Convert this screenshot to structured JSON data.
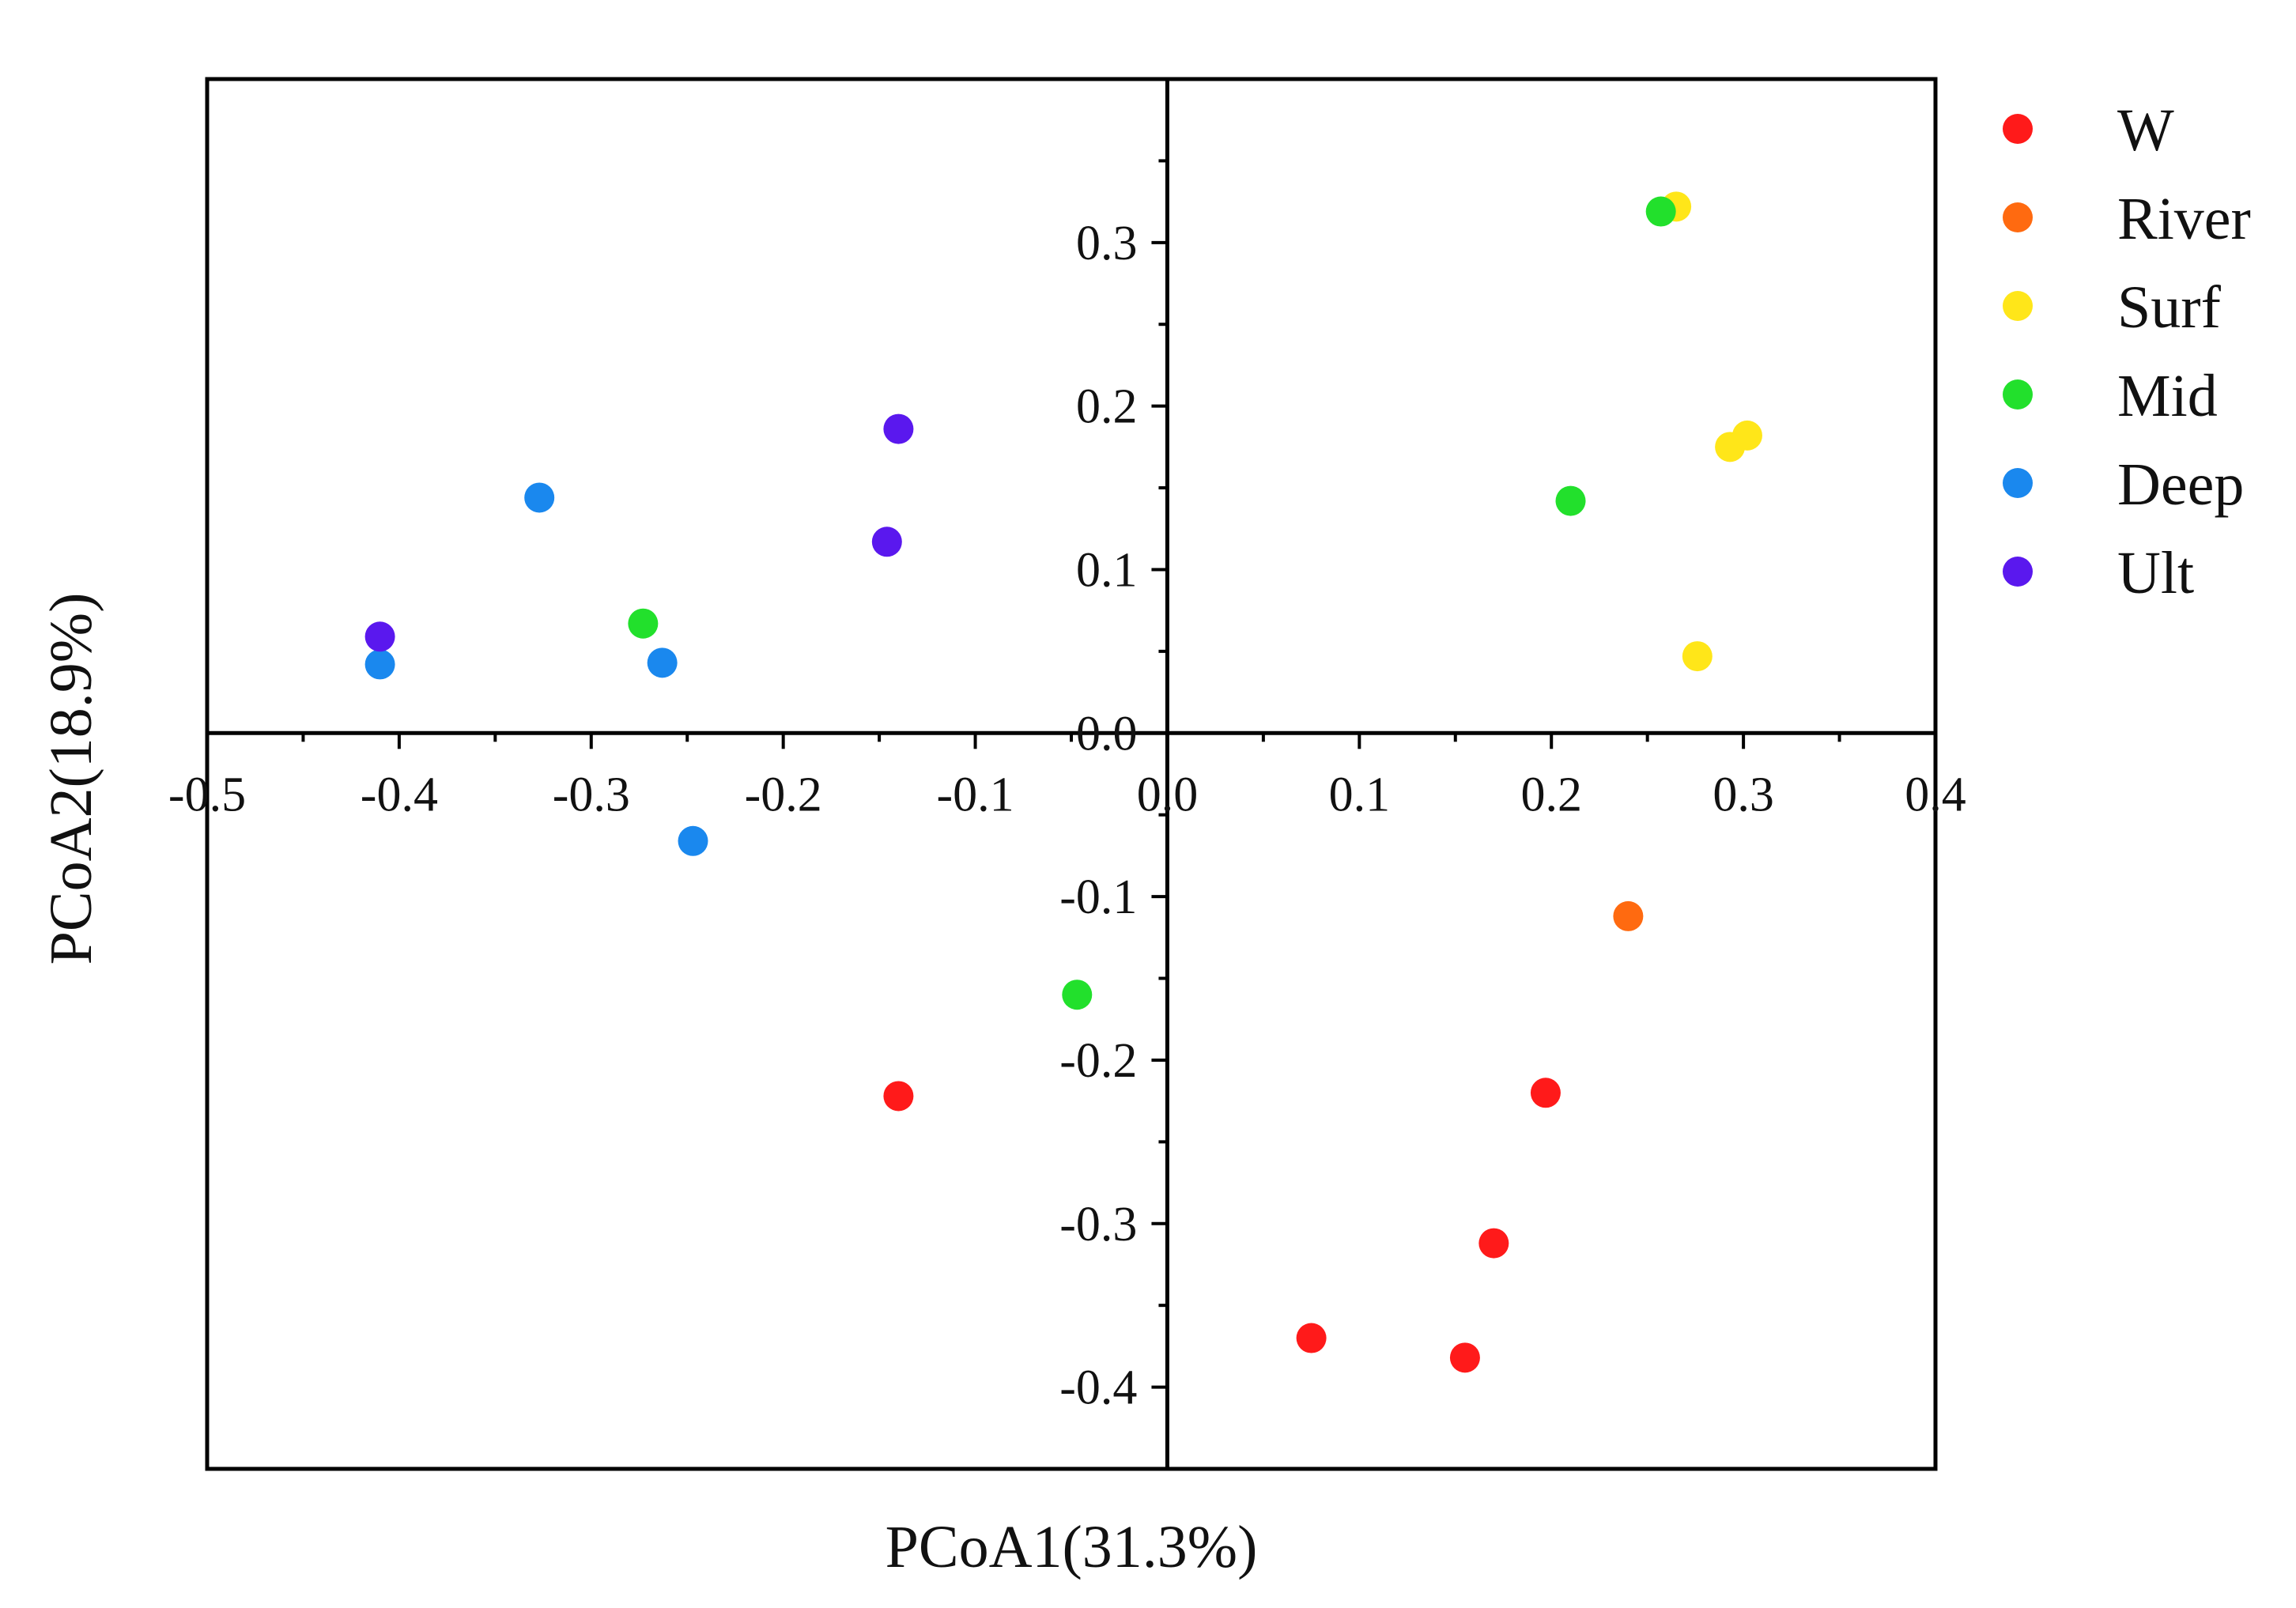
{
  "chart_data": {
    "type": "scatter",
    "title": "",
    "xlabel": "PCoA1(31.3%)",
    "ylabel": "PCoA2(18.9%)",
    "xlim": [
      -0.5,
      0.4
    ],
    "ylim": [
      -0.45,
      0.4
    ],
    "x_ticks": [
      -0.5,
      -0.4,
      -0.3,
      -0.2,
      -0.1,
      0.0,
      0.1,
      0.2,
      0.3,
      0.4
    ],
    "x_tick_labels": [
      "-0.5",
      "-0.4",
      "-0.3",
      "-0.2",
      "-0.1",
      "0.0",
      "0.1",
      "0.2",
      "0.3",
      "0.4"
    ],
    "y_ticks": [
      0.3,
      0.2,
      0.1,
      0.0,
      -0.1,
      -0.2,
      -0.3,
      -0.4
    ],
    "y_tick_labels": [
      "0.3",
      "0.2",
      "0.1",
      "0.0",
      "-0.1",
      "-0.2",
      "-0.3",
      "-0.4"
    ],
    "grid": false,
    "legend_position": "right",
    "series": [
      {
        "name": "W",
        "color": "#ff1a1a",
        "points": [
          [
            -0.14,
            -0.222
          ],
          [
            0.197,
            -0.22
          ],
          [
            0.17,
            -0.312
          ],
          [
            0.155,
            -0.382
          ],
          [
            0.075,
            -0.37
          ]
        ]
      },
      {
        "name": "River",
        "color": "#ff6a10",
        "points": [
          [
            0.24,
            -0.112
          ]
        ]
      },
      {
        "name": "Surf",
        "color": "#ffe619",
        "points": [
          [
            0.265,
            0.322
          ],
          [
            0.293,
            0.175
          ],
          [
            0.302,
            0.182
          ],
          [
            0.276,
            0.047
          ]
        ]
      },
      {
        "name": "Mid",
        "color": "#22e02c",
        "points": [
          [
            0.257,
            0.319
          ],
          [
            0.21,
            0.142
          ],
          [
            -0.273,
            0.067
          ],
          [
            -0.047,
            -0.16
          ]
        ]
      },
      {
        "name": "Deep",
        "color": "#1a88ee",
        "points": [
          [
            -0.327,
            0.144
          ],
          [
            -0.41,
            0.042
          ],
          [
            -0.263,
            0.043
          ],
          [
            -0.247,
            -0.066
          ]
        ]
      },
      {
        "name": "Ult",
        "color": "#5a18ee",
        "points": [
          [
            -0.14,
            0.186
          ],
          [
            -0.146,
            0.117
          ],
          [
            -0.41,
            0.059
          ]
        ]
      }
    ]
  }
}
